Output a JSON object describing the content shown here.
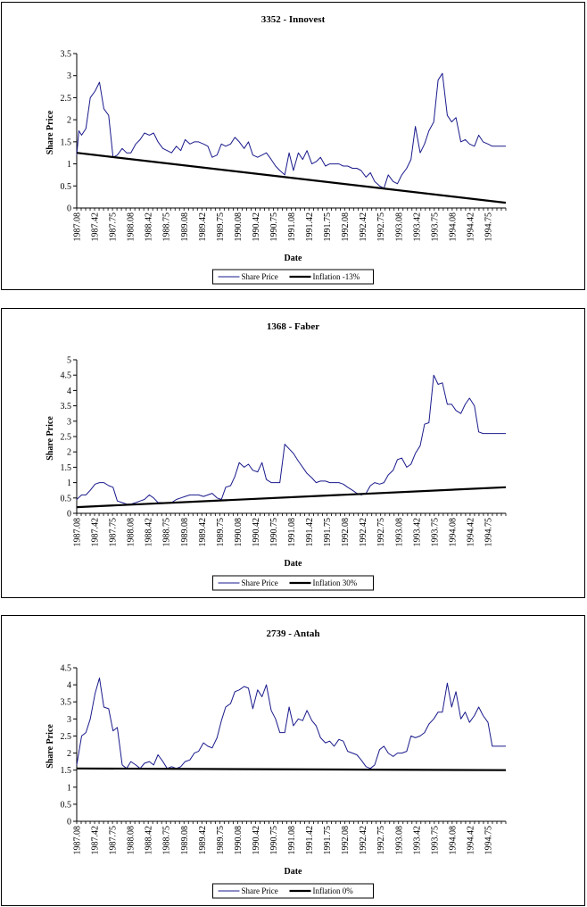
{
  "x_ticks": [
    "1987.08",
    "1987.42",
    "1987.75",
    "1988.08",
    "1988.42",
    "1988.75",
    "1989.08",
    "1989.42",
    "1989.75",
    "1990.08",
    "1990.42",
    "1990.75",
    "1991.08",
    "1991.42",
    "1991.75",
    "1992.08",
    "1992.42",
    "1992.75",
    "1993.08",
    "1993.42",
    "1993.75",
    "1994.08",
    "1994.42",
    "1994.75"
  ],
  "colors": {
    "share": "#1a1a8c",
    "inflation": "#000000",
    "axis": "#000000"
  },
  "chart_data": [
    {
      "type": "line",
      "title": "3352 - Innovest",
      "xlabel": "Date",
      "ylabel": "Share Price",
      "ylim": [
        0,
        3.5
      ],
      "yticks": [
        "0",
        "0.5",
        "1",
        "1.5",
        "2",
        "2.5",
        "3",
        "3.5"
      ],
      "xlim": [
        1987.08,
        1995.0
      ],
      "legend_position": "bottom",
      "series": [
        {
          "name": "Share Price",
          "x": [
            1987.08,
            1987.12,
            1987.17,
            1987.25,
            1987.33,
            1987.42,
            1987.5,
            1987.58,
            1987.67,
            1987.75,
            1987.83,
            1987.92,
            1988.0,
            1988.08,
            1988.17,
            1988.25,
            1988.33,
            1988.42,
            1988.5,
            1988.58,
            1988.67,
            1988.75,
            1988.83,
            1988.92,
            1989.0,
            1989.08,
            1989.17,
            1989.25,
            1989.33,
            1989.42,
            1989.5,
            1989.58,
            1989.67,
            1989.75,
            1989.83,
            1989.92,
            1990.0,
            1990.08,
            1990.17,
            1990.25,
            1990.33,
            1990.42,
            1990.5,
            1990.58,
            1990.67,
            1990.75,
            1990.83,
            1990.92,
            1991.0,
            1991.08,
            1991.17,
            1991.25,
            1991.33,
            1991.42,
            1991.5,
            1991.58,
            1991.67,
            1991.75,
            1991.83,
            1991.92,
            1992.0,
            1992.08,
            1992.17,
            1992.25,
            1992.33,
            1992.42,
            1992.5,
            1992.58,
            1992.67,
            1992.75,
            1992.83,
            1992.92,
            1993.0,
            1993.08,
            1993.17,
            1993.25,
            1993.33,
            1993.42,
            1993.5,
            1993.58,
            1993.67,
            1993.75,
            1993.83,
            1993.92,
            1994.0,
            1994.08,
            1994.17,
            1994.25,
            1994.33,
            1994.42,
            1994.5,
            1994.58,
            1994.67,
            1994.75,
            1994.83,
            1994.92,
            1995.0
          ],
          "values": [
            1.2,
            1.75,
            1.65,
            1.8,
            2.5,
            2.65,
            2.85,
            2.25,
            2.1,
            1.15,
            1.2,
            1.35,
            1.25,
            1.25,
            1.45,
            1.55,
            1.7,
            1.65,
            1.7,
            1.5,
            1.35,
            1.3,
            1.25,
            1.4,
            1.3,
            1.55,
            1.45,
            1.5,
            1.5,
            1.45,
            1.4,
            1.15,
            1.2,
            1.45,
            1.4,
            1.45,
            1.6,
            1.5,
            1.35,
            1.5,
            1.2,
            1.15,
            1.2,
            1.25,
            1.1,
            0.95,
            0.85,
            0.75,
            1.25,
            0.85,
            1.25,
            1.1,
            1.3,
            1.0,
            1.05,
            1.15,
            0.95,
            1.0,
            1.0,
            1.0,
            0.95,
            0.95,
            0.9,
            0.9,
            0.85,
            0.7,
            0.8,
            0.6,
            0.5,
            0.45,
            0.75,
            0.6,
            0.55,
            0.75,
            0.9,
            1.1,
            1.85,
            1.25,
            1.45,
            1.75,
            1.95,
            2.9,
            3.05,
            2.1,
            1.95,
            2.05,
            1.5,
            1.55,
            1.45,
            1.4,
            1.65,
            1.5,
            1.45,
            1.4,
            1.4,
            1.4,
            1.4
          ]
        },
        {
          "name": "Inflation -13%",
          "x": [
            1987.08,
            1995.0
          ],
          "values": [
            1.25,
            0.12
          ]
        }
      ]
    },
    {
      "type": "line",
      "title": "1368 - Faber",
      "xlabel": "Date",
      "ylabel": "Share Price",
      "ylim": [
        0,
        5
      ],
      "yticks": [
        "0",
        "0.5",
        "1",
        "1.5",
        "2",
        "2.5",
        "3",
        "3.5",
        "4",
        "4.5",
        "5"
      ],
      "xlim": [
        1987.08,
        1995.0
      ],
      "legend_position": "bottom",
      "series": [
        {
          "name": "Share Price",
          "x": [
            1987.08,
            1987.17,
            1987.25,
            1987.33,
            1987.42,
            1987.5,
            1987.58,
            1987.67,
            1987.75,
            1987.83,
            1987.92,
            1988.0,
            1988.08,
            1988.17,
            1988.25,
            1988.33,
            1988.42,
            1988.5,
            1988.58,
            1988.67,
            1988.75,
            1988.83,
            1988.92,
            1989.0,
            1989.08,
            1989.17,
            1989.25,
            1989.33,
            1989.42,
            1989.5,
            1989.58,
            1989.67,
            1989.75,
            1989.83,
            1989.92,
            1990.0,
            1990.08,
            1990.17,
            1990.25,
            1990.33,
            1990.42,
            1990.5,
            1990.58,
            1990.67,
            1990.75,
            1990.83,
            1990.92,
            1991.0,
            1991.08,
            1991.17,
            1991.25,
            1991.33,
            1991.42,
            1991.5,
            1991.58,
            1991.67,
            1991.75,
            1991.83,
            1991.92,
            1992.0,
            1992.08,
            1992.17,
            1992.25,
            1992.33,
            1992.42,
            1992.5,
            1992.58,
            1992.67,
            1992.75,
            1992.83,
            1992.92,
            1993.0,
            1993.08,
            1993.17,
            1993.25,
            1993.33,
            1993.42,
            1993.5,
            1993.58,
            1993.67,
            1993.75,
            1993.83,
            1993.92,
            1994.0,
            1994.08,
            1994.17,
            1994.25,
            1994.33,
            1994.42,
            1994.5,
            1994.58,
            1994.67,
            1994.75,
            1994.83,
            1994.92,
            1995.0
          ],
          "values": [
            0.45,
            0.6,
            0.6,
            0.75,
            0.95,
            1.0,
            1.0,
            0.9,
            0.85,
            0.4,
            0.35,
            0.3,
            0.3,
            0.35,
            0.4,
            0.45,
            0.6,
            0.5,
            0.35,
            0.35,
            0.35,
            0.35,
            0.45,
            0.5,
            0.55,
            0.6,
            0.6,
            0.6,
            0.55,
            0.6,
            0.65,
            0.5,
            0.45,
            0.85,
            0.9,
            1.2,
            1.65,
            1.5,
            1.6,
            1.4,
            1.35,
            1.65,
            1.1,
            1.0,
            1.0,
            1.0,
            2.25,
            2.1,
            1.95,
            1.7,
            1.5,
            1.3,
            1.15,
            1.0,
            1.05,
            1.05,
            1.0,
            1.0,
            1.0,
            0.95,
            0.85,
            0.75,
            0.65,
            0.6,
            0.65,
            0.9,
            1.0,
            0.95,
            1.0,
            1.25,
            1.4,
            1.75,
            1.8,
            1.5,
            1.6,
            1.95,
            2.2,
            2.9,
            2.95,
            4.5,
            4.2,
            4.25,
            3.55,
            3.55,
            3.35,
            3.25,
            3.55,
            3.75,
            3.5,
            2.65,
            2.6,
            2.6,
            2.6,
            2.6,
            2.6,
            2.6
          ]
        },
        {
          "name": "Inflation 30%",
          "x": [
            1987.08,
            1995.0
          ],
          "values": [
            0.2,
            0.85
          ]
        }
      ]
    },
    {
      "type": "line",
      "title": "2739 - Antah",
      "xlabel": "Date",
      "ylabel": "Share Price",
      "ylim": [
        0,
        4.5
      ],
      "yticks": [
        "0",
        "0.5",
        "1",
        "1.5",
        "2",
        "2.5",
        "3",
        "3.5",
        "4",
        "4.5"
      ],
      "xlim": [
        1987.08,
        1995.0
      ],
      "legend_position": "bottom",
      "series": [
        {
          "name": "Share Price",
          "x": [
            1987.08,
            1987.17,
            1987.25,
            1987.33,
            1987.42,
            1987.5,
            1987.58,
            1987.67,
            1987.75,
            1987.83,
            1987.92,
            1988.0,
            1988.08,
            1988.17,
            1988.25,
            1988.33,
            1988.42,
            1988.5,
            1988.58,
            1988.67,
            1988.75,
            1988.83,
            1988.92,
            1989.0,
            1989.08,
            1989.17,
            1989.25,
            1989.33,
            1989.42,
            1989.5,
            1989.58,
            1989.67,
            1989.75,
            1989.83,
            1989.92,
            1990.0,
            1990.08,
            1990.17,
            1990.25,
            1990.33,
            1990.42,
            1990.5,
            1990.58,
            1990.67,
            1990.75,
            1990.83,
            1990.92,
            1991.0,
            1991.08,
            1991.17,
            1991.25,
            1991.33,
            1991.42,
            1991.5,
            1991.58,
            1991.67,
            1991.75,
            1991.83,
            1991.92,
            1992.0,
            1992.08,
            1992.17,
            1992.25,
            1992.33,
            1992.42,
            1992.5,
            1992.58,
            1992.67,
            1992.75,
            1992.83,
            1992.92,
            1993.0,
            1993.08,
            1993.17,
            1993.25,
            1993.33,
            1993.42,
            1993.5,
            1993.58,
            1993.67,
            1993.75,
            1993.83,
            1993.92,
            1994.0,
            1994.08,
            1994.17,
            1994.25,
            1994.33,
            1994.42,
            1994.5,
            1994.58,
            1994.67,
            1994.75,
            1994.83,
            1994.92,
            1995.0
          ],
          "values": [
            1.65,
            2.5,
            2.6,
            3.0,
            3.75,
            4.2,
            3.35,
            3.3,
            2.65,
            2.75,
            1.65,
            1.55,
            1.75,
            1.65,
            1.55,
            1.7,
            1.75,
            1.65,
            1.95,
            1.75,
            1.55,
            1.6,
            1.55,
            1.6,
            1.75,
            1.8,
            2.0,
            2.05,
            2.3,
            2.2,
            2.15,
            2.45,
            2.95,
            3.35,
            3.45,
            3.8,
            3.85,
            3.95,
            3.9,
            3.3,
            3.85,
            3.65,
            4.0,
            3.25,
            3.0,
            2.6,
            2.6,
            3.35,
            2.8,
            3.0,
            2.95,
            3.25,
            2.95,
            2.8,
            2.45,
            2.3,
            2.35,
            2.2,
            2.4,
            2.35,
            2.05,
            2.0,
            1.95,
            1.8,
            1.6,
            1.55,
            1.65,
            2.1,
            2.2,
            2.0,
            1.9,
            2.0,
            2.0,
            2.05,
            2.5,
            2.45,
            2.5,
            2.6,
            2.85,
            3.0,
            3.2,
            3.2,
            4.05,
            3.35,
            3.8,
            3.0,
            3.2,
            2.9,
            3.1,
            3.35,
            3.1,
            2.9,
            2.2,
            2.2,
            2.2,
            2.2
          ]
        },
        {
          "name": "Inflation 0%",
          "x": [
            1987.08,
            1995.0
          ],
          "values": [
            1.55,
            1.5
          ]
        }
      ]
    }
  ]
}
